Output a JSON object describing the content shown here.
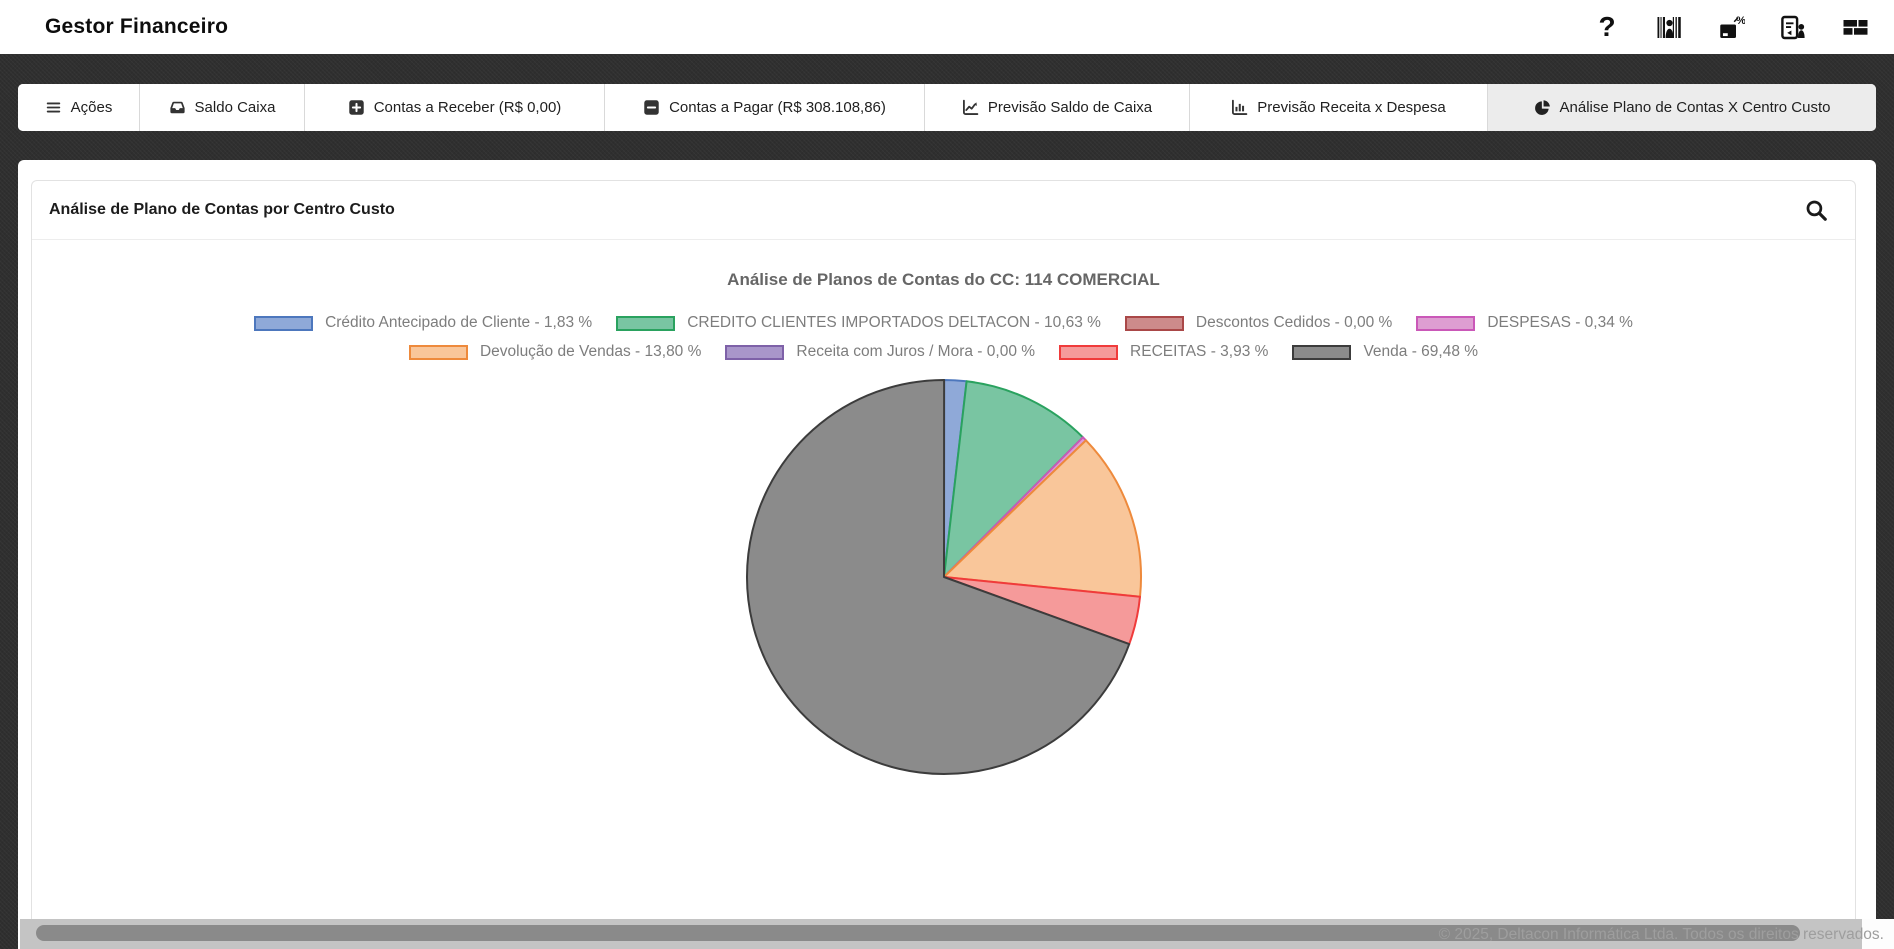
{
  "app": {
    "title": "Gestor Financeiro"
  },
  "header_icons": [
    {
      "name": "help-icon",
      "glyph": "?"
    },
    {
      "name": "user-barcode-icon"
    },
    {
      "name": "percent-box-icon"
    },
    {
      "name": "report-person-icon"
    },
    {
      "name": "modules-icon"
    }
  ],
  "tabs": [
    {
      "label": "Ações",
      "icon": "menu",
      "active": false
    },
    {
      "label": "Saldo Caixa",
      "icon": "inbox",
      "active": false
    },
    {
      "label": "Contas a Receber (R$ 0,00)",
      "icon": "plus-square",
      "active": false
    },
    {
      "label": "Contas a Pagar (R$ 308.108,86)",
      "icon": "minus-square",
      "active": false
    },
    {
      "label": "Previsão Saldo de Caixa",
      "icon": "chart-line",
      "active": false
    },
    {
      "label": "Previsão Receita x Despesa",
      "icon": "chart-bar",
      "active": false
    },
    {
      "label": "Análise Plano de Contas X Centro Custo",
      "icon": "chart-pie",
      "active": true
    }
  ],
  "panel": {
    "title": "Análise de Plano de Contas por Centro Custo"
  },
  "chart_data": {
    "type": "pie",
    "title": "Análise de Planos de Contas do CC: 114 COMERCIAL",
    "start_angle_deg": -90,
    "direction": "clockwise",
    "legend_position": "top",
    "legend_rows": [
      4,
      4
    ],
    "slices": [
      {
        "label": "Crédito Antecipado de Cliente",
        "value_pct": 1.83,
        "display": "Crédito Antecipado de Cliente - 1,83 %",
        "fill": "#8fa9d8",
        "border": "#4d77bd"
      },
      {
        "label": "CREDITO CLIENTES IMPORTADOS DELTACON",
        "value_pct": 10.63,
        "display": "CREDITO CLIENTES IMPORTADOS DELTACON - 10,63 %",
        "fill": "#79c5a2",
        "border": "#2aa25f"
      },
      {
        "label": "Descontos Cedidos",
        "value_pct": 0.0,
        "display": "Descontos Cedidos - 0,00 %",
        "fill": "#cd8b8b",
        "border": "#aa4848"
      },
      {
        "label": "DESPESAS",
        "value_pct": 0.34,
        "display": "DESPESAS - 0,34 %",
        "fill": "#de9ed2",
        "border": "#ca58b8"
      },
      {
        "label": "Devolução de Vendas",
        "value_pct": 13.8,
        "display": "Devolução de Vendas - 13,80 %",
        "fill": "#f9c69a",
        "border": "#ee8a3c"
      },
      {
        "label": "Receita com Juros / Mora",
        "value_pct": 0.0,
        "display": "Receita com Juros / Mora - 0,00 %",
        "fill": "#a996ca",
        "border": "#7e61a8"
      },
      {
        "label": "RECEITAS",
        "value_pct": 3.93,
        "display": "RECEITAS - 3,93 %",
        "fill": "#f59a9a",
        "border": "#f03b3b"
      },
      {
        "label": "Venda",
        "value_pct": 69.48,
        "display": "Venda - 69,48 %",
        "fill": "#8b8b8b",
        "border": "#3c3c3c"
      }
    ]
  },
  "footer": {
    "copyright": "© 2025, Deltacon Informática Ltda. Todos os direitos reservados."
  }
}
